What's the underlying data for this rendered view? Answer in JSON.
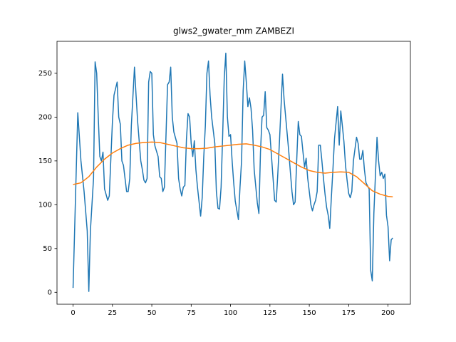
{
  "chart_data": {
    "type": "line",
    "title": "glws2_gwater_mm ZAMBEZI",
    "series": [
      {
        "color": "#1f77b4",
        "x": [
          0,
          3,
          5,
          7,
          9,
          10,
          11,
          13,
          14,
          15,
          16,
          17,
          18,
          19,
          20,
          22,
          23,
          25,
          26,
          28,
          29,
          30,
          31,
          32,
          34,
          35,
          36,
          37,
          39,
          40,
          41,
          43,
          44,
          45,
          46,
          47,
          48,
          49,
          50,
          51,
          52,
          54,
          55,
          56,
          57,
          58,
          60,
          61,
          62,
          63,
          64,
          66,
          67,
          68,
          69,
          70,
          71,
          72,
          73,
          74,
          75,
          76,
          77,
          78,
          79,
          81,
          82,
          83,
          84,
          85,
          86,
          87,
          88,
          90,
          91,
          92,
          93,
          94,
          95,
          96,
          97,
          98,
          99,
          100,
          101,
          102,
          103,
          105,
          106,
          107,
          108,
          109,
          110,
          111,
          112,
          113,
          114,
          115,
          117,
          118,
          119,
          120,
          121,
          122,
          123,
          124,
          125,
          126,
          127,
          128,
          129,
          130,
          131,
          133,
          134,
          135,
          137,
          138,
          139,
          140,
          141,
          142,
          143,
          144,
          145,
          146,
          147,
          148,
          149,
          150,
          151,
          152,
          153,
          154,
          155,
          156,
          157,
          158,
          159,
          160,
          161,
          162,
          163,
          164,
          165,
          166,
          168,
          169,
          170,
          171,
          172,
          173,
          174,
          175,
          176,
          177,
          178,
          180,
          181,
          182,
          183,
          184,
          185,
          186,
          188,
          189,
          190,
          191,
          193,
          194,
          195,
          196,
          197,
          198,
          199,
          200,
          201,
          202,
          203
        ],
        "values": [
          5,
          205,
          150,
          115,
          70,
          1,
          70,
          130,
          263,
          250,
          200,
          155,
          150,
          160,
          118,
          105,
          110,
          195,
          225,
          240,
          200,
          192,
          150,
          145,
          115,
          115,
          130,
          190,
          257,
          225,
          195,
          150,
          140,
          128,
          125,
          130,
          240,
          252,
          250,
          180,
          167,
          155,
          132,
          130,
          115,
          120,
          237,
          240,
          257,
          200,
          183,
          170,
          130,
          118,
          110,
          120,
          122,
          175,
          204,
          200,
          170,
          155,
          173,
          140,
          120,
          87,
          108,
          155,
          190,
          250,
          264,
          225,
          200,
          170,
          115,
          96,
          95,
          120,
          180,
          245,
          273,
          200,
          178,
          180,
          150,
          125,
          104,
          83,
          120,
          150,
          230,
          264,
          240,
          212,
          222,
          210,
          185,
          140,
          102,
          90,
          160,
          200,
          202,
          229,
          188,
          185,
          180,
          155,
          130,
          105,
          103,
          135,
          170,
          249,
          220,
          200,
          160,
          137,
          115,
          100,
          103,
          150,
          195,
          180,
          178,
          160,
          143,
          153,
          130,
          115,
          100,
          93,
          100,
          105,
          115,
          168,
          168,
          150,
          130,
          112,
          97,
          88,
          73,
          108,
          140,
          175,
          212,
          168,
          207,
          190,
          172,
          145,
          128,
          113,
          108,
          115,
          150,
          177,
          170,
          152,
          152,
          162,
          140,
          125,
          118,
          25,
          13,
          90,
          177,
          150,
          133,
          137,
          130,
          135,
          88,
          75,
          36,
          60,
          62
        ]
      },
      {
        "color": "#ff7f0e",
        "x": [
          0,
          5,
          10,
          15,
          20,
          25,
          30,
          35,
          40,
          45,
          50,
          55,
          60,
          65,
          70,
          75,
          80,
          85,
          90,
          95,
          100,
          105,
          110,
          115,
          120,
          125,
          130,
          135,
          140,
          145,
          150,
          155,
          160,
          165,
          170,
          175,
          180,
          185,
          190,
          195,
          200,
          203
        ],
        "values": [
          123,
          125,
          132,
          143,
          152,
          159,
          164,
          168,
          170,
          171,
          171.5,
          171,
          169,
          167,
          165,
          164,
          164,
          164.5,
          166,
          167,
          168,
          169,
          169.5,
          168,
          166,
          163,
          158,
          153,
          148,
          143,
          139,
          137,
          136,
          137,
          137.5,
          137,
          132,
          124,
          116,
          112,
          109.5,
          109
        ]
      }
    ],
    "xlim": [
      -10.2,
      214.2
    ],
    "xticks": [
      0,
      25,
      50,
      75,
      100,
      125,
      150,
      175,
      200
    ],
    "ylim": [
      -13.6,
      286.5
    ],
    "yticks": [
      0,
      50,
      100,
      150,
      200,
      250
    ]
  }
}
